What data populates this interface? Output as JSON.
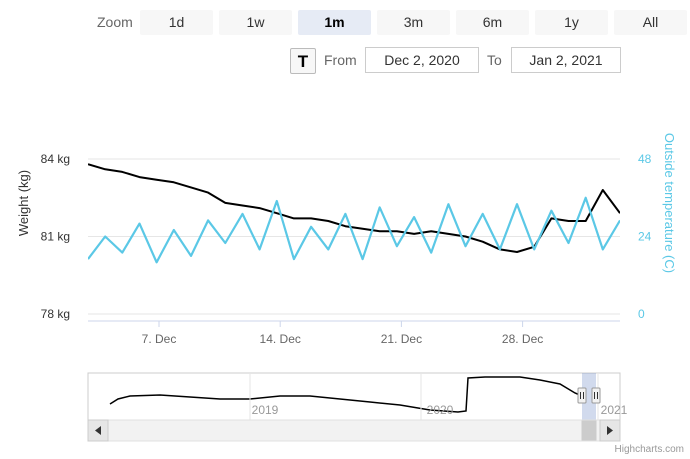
{
  "range_selector": {
    "zoom_label": "Zoom",
    "buttons": [
      "1d",
      "1w",
      "1m",
      "3m",
      "6m",
      "1y",
      "All"
    ],
    "active": "1m",
    "toggle_label": "T",
    "from_label": "From",
    "from_value": "Dec 2, 2020",
    "to_label": "To",
    "to_value": "Jan 2, 2021"
  },
  "chart_data": {
    "type": "line",
    "title": "",
    "x_range": [
      "2020-12-02",
      "2021-01-02"
    ],
    "x_ticks": [
      "7. Dec",
      "14. Dec",
      "21. Dec",
      "28. Dec"
    ],
    "y_left": {
      "label": "Weight (kg)",
      "ticks": [
        "78 kg",
        "81 kg",
        "84 kg"
      ],
      "range": [
        78,
        84
      ]
    },
    "y_right": {
      "label": "Outside temperature (C)",
      "ticks": [
        "0",
        "24",
        "48"
      ],
      "range": [
        0,
        48
      ],
      "opposite": true
    },
    "grid": true,
    "series": [
      {
        "axis": "left",
        "color": "#000000",
        "points": [
          [
            "2020-12-02",
            83.8
          ],
          [
            "2020-12-03",
            83.6
          ],
          [
            "2020-12-04",
            83.5
          ],
          [
            "2020-12-05",
            83.3
          ],
          [
            "2020-12-06",
            83.2
          ],
          [
            "2020-12-07",
            83.1
          ],
          [
            "2020-12-08",
            82.9
          ],
          [
            "2020-12-09",
            82.7
          ],
          [
            "2020-12-10",
            82.3
          ],
          [
            "2020-12-11",
            82.2
          ],
          [
            "2020-12-12",
            82.1
          ],
          [
            "2020-12-13",
            81.9
          ],
          [
            "2020-12-14",
            81.7
          ],
          [
            "2020-12-15",
            81.7
          ],
          [
            "2020-12-16",
            81.6
          ],
          [
            "2020-12-17",
            81.4
          ],
          [
            "2020-12-18",
            81.3
          ],
          [
            "2020-12-19",
            81.2
          ],
          [
            "2020-12-20",
            81.2
          ],
          [
            "2020-12-21",
            81.1
          ],
          [
            "2020-12-22",
            81.2
          ],
          [
            "2020-12-23",
            81.1
          ],
          [
            "2020-12-24",
            81.0
          ],
          [
            "2020-12-25",
            80.8
          ],
          [
            "2020-12-26",
            80.5
          ],
          [
            "2020-12-27",
            80.4
          ],
          [
            "2020-12-28",
            80.6
          ],
          [
            "2020-12-29",
            81.7
          ],
          [
            "2020-12-30",
            81.6
          ],
          [
            "2020-12-31",
            81.6
          ],
          [
            "2021-01-01",
            82.8
          ],
          [
            "2021-01-02",
            81.9
          ]
        ]
      },
      {
        "axis": "right",
        "color": "#5bc8e6",
        "points": [
          [
            "2020-12-02",
            17
          ],
          [
            "2020-12-03",
            24
          ],
          [
            "2020-12-04",
            19
          ],
          [
            "2020-12-05",
            28
          ],
          [
            "2020-12-06",
            16
          ],
          [
            "2020-12-07",
            26
          ],
          [
            "2020-12-08",
            18
          ],
          [
            "2020-12-09",
            29
          ],
          [
            "2020-12-10",
            22
          ],
          [
            "2020-12-11",
            31
          ],
          [
            "2020-12-12",
            20
          ],
          [
            "2020-12-13",
            35
          ],
          [
            "2020-12-14",
            17
          ],
          [
            "2020-12-15",
            27
          ],
          [
            "2020-12-16",
            20
          ],
          [
            "2020-12-17",
            31
          ],
          [
            "2020-12-18",
            17
          ],
          [
            "2020-12-19",
            33
          ],
          [
            "2020-12-20",
            21
          ],
          [
            "2020-12-21",
            30
          ],
          [
            "2020-12-22",
            19
          ],
          [
            "2020-12-23",
            34
          ],
          [
            "2020-12-24",
            21
          ],
          [
            "2020-12-25",
            31
          ],
          [
            "2020-12-26",
            20
          ],
          [
            "2020-12-27",
            34
          ],
          [
            "2020-12-28",
            20
          ],
          [
            "2020-12-29",
            32
          ],
          [
            "2020-12-30",
            22
          ],
          [
            "2020-12-31",
            36
          ],
          [
            "2021-01-01",
            20
          ],
          [
            "2021-01-02",
            29
          ]
        ]
      }
    ],
    "navigator": {
      "x_ticks": [
        "2019",
        "2020",
        "2021"
      ]
    }
  },
  "credit": "Highcharts.com"
}
